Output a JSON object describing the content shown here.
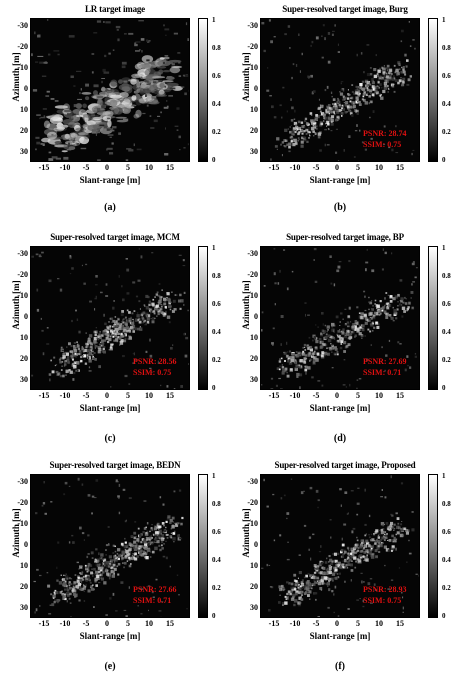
{
  "panels": [
    {
      "title": "LR target image",
      "caption": "(a)",
      "psnr": "",
      "ssim": ""
    },
    {
      "title": "Super-resolved target image, Burg",
      "caption": "(b)",
      "psnr": "PSNR: 28.74",
      "ssim": "SSIM: 0.75"
    },
    {
      "title": "Super-resolved target image, MCM",
      "caption": "(c)",
      "psnr": "PSNR: 28.56",
      "ssim": "SSIM: 0.75"
    },
    {
      "title": "Super-resolved target image, BP",
      "caption": "(d)",
      "psnr": "PSNR: 27.69",
      "ssim": "SSIM: 0.71"
    },
    {
      "title": "Super-resolved target image, BEDN",
      "caption": "(e)",
      "psnr": "PSNR: 27.66",
      "ssim": "SSIM: 0.71"
    },
    {
      "title": "Super-resolved target image, Proposed",
      "caption": "(f)",
      "psnr": "PSNR: 28.93",
      "ssim": "SSIM: 0.75"
    }
  ],
  "axes": {
    "ylabel": "Azimuth [m]",
    "xlabel": "Slant-range [m]",
    "yticks": [
      "-30",
      "-20",
      "-10",
      "0",
      "10",
      "20",
      "30"
    ],
    "xticks": [
      "-15",
      "-10",
      "-5",
      "0",
      "5",
      "10",
      "15"
    ],
    "cticks": [
      "1",
      "0.8",
      "0.6",
      "0.4",
      "0.2",
      "0"
    ]
  }
}
